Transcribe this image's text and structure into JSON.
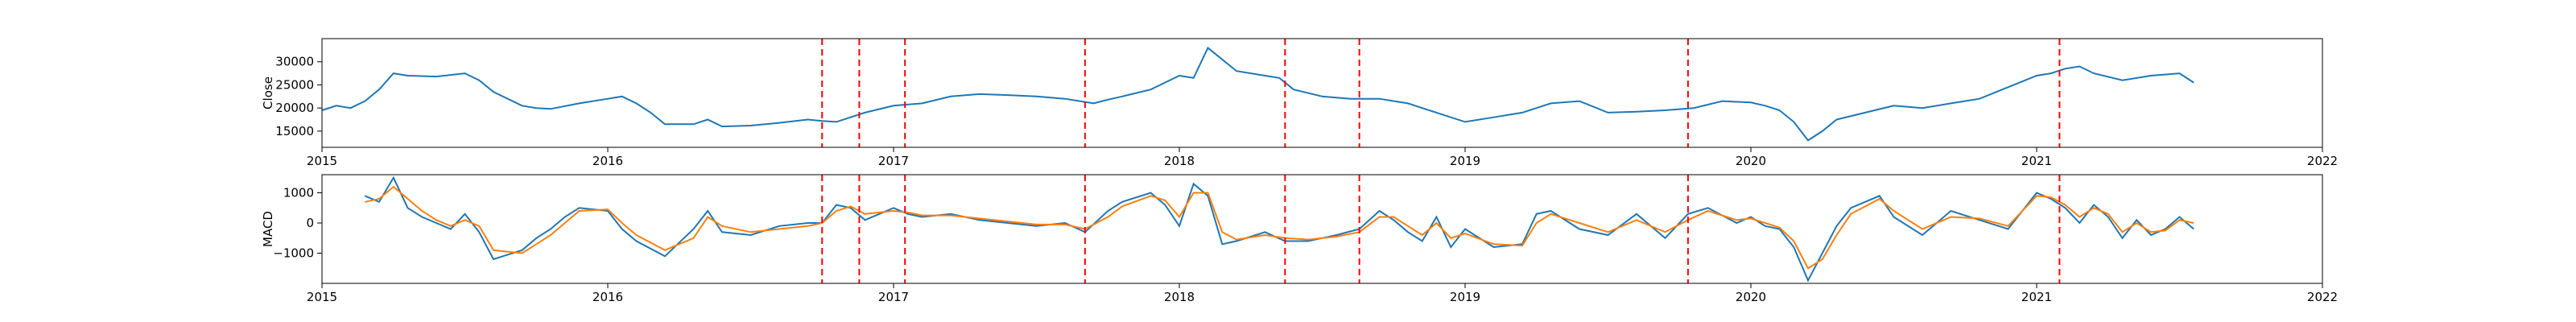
{
  "chart_data": [
    {
      "type": "line",
      "title": "",
      "xlabel": "",
      "ylabel": "Close",
      "xlim": [
        2015,
        2022
      ],
      "ylim": [
        11500,
        35000
      ],
      "x_ticks": [
        "2015",
        "2016",
        "2017",
        "2018",
        "2019",
        "2020",
        "2021",
        "2022"
      ],
      "y_ticks": [
        {
          "value": 15000,
          "label": "15000"
        },
        {
          "value": 20000,
          "label": "20000"
        },
        {
          "value": 25000,
          "label": "25000"
        },
        {
          "value": 30000,
          "label": "30000"
        }
      ],
      "grid": false,
      "series": [
        {
          "color": "#1f77b4",
          "x": [
            2015.0,
            2015.05,
            2015.1,
            2015.15,
            2015.2,
            2015.25,
            2015.3,
            2015.4,
            2015.5,
            2015.55,
            2015.6,
            2015.7,
            2015.75,
            2015.8,
            2015.9,
            2016.0,
            2016.05,
            2016.1,
            2016.15,
            2016.2,
            2016.3,
            2016.35,
            2016.4,
            2016.5,
            2016.6,
            2016.7,
            2016.75,
            2016.8,
            2016.9,
            2017.0,
            2017.1,
            2017.2,
            2017.3,
            2017.4,
            2017.5,
            2017.6,
            2017.7,
            2017.75,
            2017.8,
            2017.9,
            2018.0,
            2018.05,
            2018.1,
            2018.2,
            2018.3,
            2018.35,
            2018.4,
            2018.5,
            2018.6,
            2018.7,
            2018.8,
            2018.85,
            2018.9,
            2019.0,
            2019.1,
            2019.2,
            2019.3,
            2019.4,
            2019.5,
            2019.6,
            2019.7,
            2019.8,
            2019.9,
            2020.0,
            2020.05,
            2020.1,
            2020.15,
            2020.2,
            2020.25,
            2020.3,
            2020.4,
            2020.5,
            2020.6,
            2020.7,
            2020.8,
            2020.9,
            2021.0,
            2021.05,
            2021.1,
            2021.15,
            2021.2,
            2021.3,
            2021.4,
            2021.5,
            2021.55
          ],
          "y": [
            19500,
            20500,
            20000,
            21500,
            24000,
            27500,
            27000,
            26800,
            27500,
            26000,
            23500,
            20500,
            20000,
            19800,
            21000,
            22000,
            22500,
            21000,
            19000,
            16500,
            16500,
            17500,
            16000,
            16200,
            16800,
            17500,
            17200,
            17000,
            19000,
            20500,
            21000,
            22500,
            23000,
            22800,
            22500,
            22000,
            21000,
            21800,
            22500,
            24000,
            27000,
            26500,
            33000,
            28000,
            27000,
            26500,
            24000,
            22500,
            22000,
            22000,
            21000,
            20000,
            19000,
            17000,
            18000,
            19000,
            21000,
            21500,
            19000,
            19200,
            19500,
            20000,
            21500,
            21200,
            20500,
            19500,
            17000,
            13000,
            15000,
            17500,
            19000,
            20500,
            20000,
            21000,
            22000,
            24500,
            27000,
            27500,
            28500,
            29000,
            27500,
            26000,
            27000,
            27500,
            25500
          ]
        }
      ],
      "vlines": [
        2016.75,
        2016.88,
        2017.04,
        2017.67,
        2018.37,
        2018.63,
        2019.78,
        2021.08
      ],
      "vline_color": "#ff0000"
    },
    {
      "type": "line",
      "title": "",
      "xlabel": "",
      "ylabel": "MACD",
      "xlim": [
        2015,
        2022
      ],
      "ylim": [
        -2000,
        1600
      ],
      "x_ticks": [
        "2015",
        "2016",
        "2017",
        "2018",
        "2019",
        "2020",
        "2021",
        "2022"
      ],
      "y_ticks": [
        {
          "value": -1000,
          "label": "−1000"
        },
        {
          "value": 0,
          "label": "0"
        },
        {
          "value": 1000,
          "label": "1000"
        }
      ],
      "grid": false,
      "series": [
        {
          "color": "#1f77b4",
          "x": [
            2015.15,
            2015.2,
            2015.25,
            2015.3,
            2015.35,
            2015.4,
            2015.45,
            2015.5,
            2015.55,
            2015.6,
            2015.7,
            2015.75,
            2015.8,
            2015.85,
            2015.9,
            2016.0,
            2016.05,
            2016.1,
            2016.2,
            2016.3,
            2016.35,
            2016.4,
            2016.5,
            2016.6,
            2016.7,
            2016.75,
            2016.8,
            2016.85,
            2016.9,
            2017.0,
            2017.05,
            2017.1,
            2017.2,
            2017.3,
            2017.4,
            2017.5,
            2017.6,
            2017.67,
            2017.75,
            2017.8,
            2017.9,
            2017.95,
            2018.0,
            2018.05,
            2018.1,
            2018.15,
            2018.2,
            2018.3,
            2018.37,
            2018.45,
            2018.55,
            2018.63,
            2018.7,
            2018.75,
            2018.8,
            2018.85,
            2018.9,
            2018.95,
            2019.0,
            2019.1,
            2019.2,
            2019.25,
            2019.3,
            2019.4,
            2019.5,
            2019.6,
            2019.7,
            2019.78,
            2019.85,
            2019.95,
            2020.0,
            2020.05,
            2020.1,
            2020.15,
            2020.2,
            2020.25,
            2020.3,
            2020.35,
            2020.45,
            2020.5,
            2020.6,
            2020.7,
            2020.8,
            2020.9,
            2021.0,
            2021.05,
            2021.1,
            2021.15,
            2021.2,
            2021.25,
            2021.3,
            2021.35,
            2021.4,
            2021.45,
            2021.5,
            2021.55
          ],
          "y": [
            900,
            700,
            1500,
            500,
            200,
            0,
            -200,
            300,
            -300,
            -1200,
            -900,
            -500,
            -200,
            200,
            500,
            400,
            -200,
            -600,
            -1100,
            -200,
            400,
            -300,
            -400,
            -100,
            0,
            0,
            600,
            500,
            100,
            500,
            300,
            200,
            300,
            100,
            0,
            -100,
            0,
            -300,
            400,
            700,
            1000,
            600,
            -100,
            1300,
            900,
            -700,
            -600,
            -300,
            -600,
            -600,
            -400,
            -200,
            400,
            100,
            -300,
            -600,
            200,
            -800,
            -200,
            -800,
            -700,
            300,
            400,
            -200,
            -400,
            300,
            -500,
            300,
            500,
            0,
            200,
            -100,
            -200,
            -800,
            -1900,
            -1000,
            -100,
            500,
            900,
            200,
            -400,
            400,
            100,
            -200,
            1000,
            800,
            500,
            0,
            600,
            200,
            -500,
            100,
            -400,
            -200,
            200,
            -200
          ]
        },
        {
          "color": "#ff7f0e",
          "x": [
            2015.15,
            2015.2,
            2015.25,
            2015.3,
            2015.35,
            2015.4,
            2015.45,
            2015.5,
            2015.55,
            2015.6,
            2015.7,
            2015.75,
            2015.8,
            2015.85,
            2015.9,
            2016.0,
            2016.05,
            2016.1,
            2016.2,
            2016.3,
            2016.35,
            2016.4,
            2016.5,
            2016.6,
            2016.7,
            2016.75,
            2016.8,
            2016.85,
            2016.9,
            2017.0,
            2017.05,
            2017.1,
            2017.2,
            2017.3,
            2017.4,
            2017.5,
            2017.6,
            2017.67,
            2017.75,
            2017.8,
            2017.9,
            2017.95,
            2018.0,
            2018.05,
            2018.1,
            2018.15,
            2018.2,
            2018.3,
            2018.37,
            2018.45,
            2018.55,
            2018.63,
            2018.7,
            2018.75,
            2018.8,
            2018.85,
            2018.9,
            2018.95,
            2019.0,
            2019.1,
            2019.2,
            2019.25,
            2019.3,
            2019.4,
            2019.5,
            2019.6,
            2019.7,
            2019.78,
            2019.85,
            2019.95,
            2020.0,
            2020.05,
            2020.1,
            2020.15,
            2020.2,
            2020.25,
            2020.3,
            2020.35,
            2020.45,
            2020.5,
            2020.6,
            2020.7,
            2020.8,
            2020.9,
            2021.0,
            2021.05,
            2021.1,
            2021.15,
            2021.2,
            2021.25,
            2021.3,
            2021.35,
            2021.4,
            2021.45,
            2021.5,
            2021.55
          ],
          "y": [
            700,
            800,
            1200,
            800,
            400,
            100,
            -100,
            100,
            -100,
            -900,
            -1000,
            -700,
            -400,
            0,
            400,
            450,
            0,
            -400,
            -900,
            -500,
            200,
            -100,
            -300,
            -200,
            -100,
            0,
            400,
            550,
            300,
            400,
            350,
            250,
            250,
            150,
            50,
            -50,
            -50,
            -200,
            200,
            550,
            900,
            750,
            200,
            1000,
            1000,
            -300,
            -550,
            -400,
            -500,
            -550,
            -450,
            -300,
            200,
            200,
            -100,
            -400,
            0,
            -500,
            -350,
            -700,
            -750,
            0,
            300,
            0,
            -300,
            100,
            -300,
            100,
            400,
            100,
            150,
            0,
            -150,
            -600,
            -1500,
            -1200,
            -400,
            300,
            800,
            400,
            -200,
            200,
            150,
            -100,
            900,
            850,
            600,
            200,
            500,
            300,
            -300,
            0,
            -300,
            -250,
            100,
            0
          ]
        }
      ],
      "vlines": [
        2016.75,
        2016.88,
        2017.04,
        2017.67,
        2018.37,
        2018.63,
        2019.78,
        2021.08
      ],
      "vline_color": "#ff0000"
    }
  ]
}
